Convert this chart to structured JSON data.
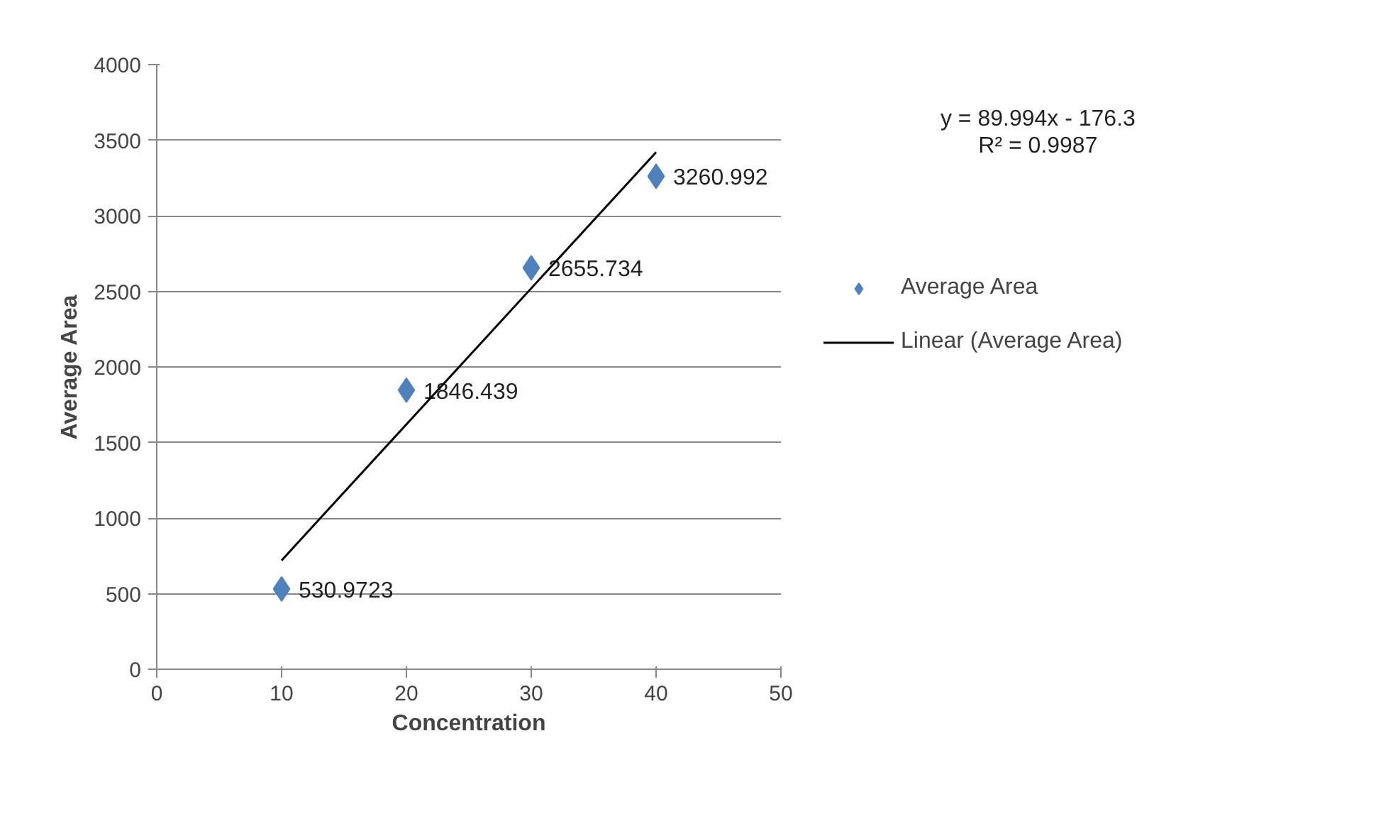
{
  "chart_data": {
    "type": "scatter",
    "xlabel": "Concentration",
    "ylabel": "Average Area",
    "xlim": [
      0,
      50
    ],
    "xticks": [
      0,
      10,
      20,
      30,
      40,
      50
    ],
    "ylim": [
      0,
      4000
    ],
    "yticks": [
      0,
      500,
      1000,
      1500,
      2000,
      2500,
      3000,
      3500,
      4000
    ],
    "grid": "y",
    "legend": "right",
    "annotations": [
      "y = 89.994x - 176.3",
      "R² = 0.9987"
    ],
    "x": [
      10,
      20,
      30,
      40
    ],
    "series": [
      {
        "name": "Average Area",
        "marker": "diamond",
        "color": "#4f81bd",
        "values": [
          530.9723,
          1846.439,
          2655.734,
          3260.992
        ],
        "value_labels": [
          "530.9723",
          "1846.439",
          "2655.734",
          "3260.992"
        ]
      },
      {
        "name": "Linear (Average Area)",
        "type": "line",
        "color": "#000000",
        "x": [
          10,
          40
        ],
        "values": [
          720,
          3420
        ]
      }
    ]
  }
}
